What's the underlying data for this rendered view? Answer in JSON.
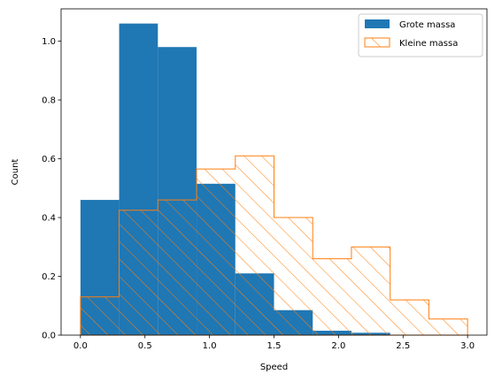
{
  "chart_data": {
    "type": "histogram",
    "xlabel": "Speed",
    "ylabel": "Count",
    "xlim": [
      -0.15,
      3.15
    ],
    "ylim": [
      0,
      1.11
    ],
    "xticks": [
      0.0,
      0.5,
      1.0,
      1.5,
      2.0,
      2.5,
      3.0
    ],
    "xtick_labels": [
      "0.0",
      "0.5",
      "1.0",
      "1.5",
      "2.0",
      "2.5",
      "3.0"
    ],
    "yticks": [
      0.0,
      0.2,
      0.4,
      0.6,
      0.8,
      1.0
    ],
    "ytick_labels": [
      "0.0",
      "0.2",
      "0.4",
      "0.6",
      "0.8",
      "1.0"
    ],
    "legend_position": "top-right",
    "series": [
      {
        "name": "Grote massa",
        "style": "filled",
        "color": "#1f77b4",
        "bin_edges": [
          0.0,
          0.3,
          0.6,
          0.9,
          1.2,
          1.5,
          1.8,
          2.1,
          2.4
        ],
        "values": [
          0.46,
          1.06,
          0.98,
          0.515,
          0.21,
          0.085,
          0.015,
          0.008
        ]
      },
      {
        "name": "Kleine massa",
        "style": "hatched",
        "color": "#ff7f0e",
        "bin_edges": [
          0.0,
          0.3,
          0.6,
          0.9,
          1.2,
          1.5,
          1.8,
          2.1,
          2.4,
          2.7,
          3.0
        ],
        "values": [
          0.13,
          0.425,
          0.46,
          0.565,
          0.61,
          0.4,
          0.26,
          0.3,
          0.12,
          0.055
        ]
      }
    ]
  }
}
